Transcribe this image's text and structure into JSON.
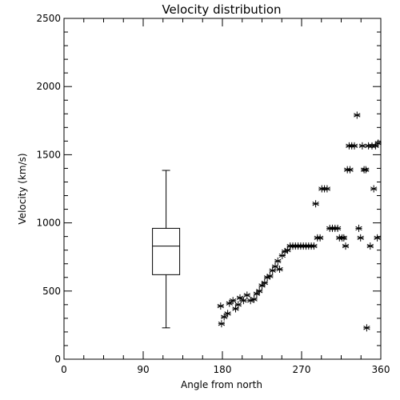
{
  "chart_data": {
    "type": "scatter",
    "title": "Velocity distribution",
    "xlabel": "Angle from north",
    "ylabel": "Velocity (km/s)",
    "xlim": [
      0,
      360
    ],
    "ylim": [
      0,
      2500
    ],
    "x_ticks": [
      0,
      90,
      180,
      270,
      360
    ],
    "y_ticks": [
      0,
      500,
      1000,
      1500,
      2000,
      2500
    ],
    "x_tick_labels": [
      "0",
      "90",
      "180",
      "270",
      "360"
    ],
    "y_tick_labels": [
      "0",
      "500",
      "1000",
      "1500",
      "2000",
      "2500"
    ],
    "grid": false,
    "marker": "asterisk",
    "boxplot": {
      "x": 116,
      "min": 230,
      "q1": 620,
      "median": 830,
      "q3": 960,
      "max": 1385
    },
    "points": [
      {
        "x": 178,
        "y": 390
      },
      {
        "x": 179,
        "y": 260
      },
      {
        "x": 182,
        "y": 310
      },
      {
        "x": 186,
        "y": 335
      },
      {
        "x": 188,
        "y": 410
      },
      {
        "x": 192,
        "y": 430
      },
      {
        "x": 195,
        "y": 370
      },
      {
        "x": 198,
        "y": 400
      },
      {
        "x": 200,
        "y": 450
      },
      {
        "x": 204,
        "y": 430
      },
      {
        "x": 208,
        "y": 470
      },
      {
        "x": 212,
        "y": 430
      },
      {
        "x": 216,
        "y": 440
      },
      {
        "x": 219,
        "y": 480
      },
      {
        "x": 222,
        "y": 500
      },
      {
        "x": 225,
        "y": 540
      },
      {
        "x": 228,
        "y": 560
      },
      {
        "x": 231,
        "y": 600
      },
      {
        "x": 234,
        "y": 610
      },
      {
        "x": 237,
        "y": 650
      },
      {
        "x": 240,
        "y": 680
      },
      {
        "x": 243,
        "y": 720
      },
      {
        "x": 245,
        "y": 660
      },
      {
        "x": 248,
        "y": 760
      },
      {
        "x": 251,
        "y": 790
      },
      {
        "x": 254,
        "y": 800
      },
      {
        "x": 257,
        "y": 830
      },
      {
        "x": 260,
        "y": 830
      },
      {
        "x": 263,
        "y": 830
      },
      {
        "x": 266,
        "y": 830
      },
      {
        "x": 269,
        "y": 830
      },
      {
        "x": 272,
        "y": 830
      },
      {
        "x": 275,
        "y": 830
      },
      {
        "x": 278,
        "y": 830
      },
      {
        "x": 281,
        "y": 830
      },
      {
        "x": 284,
        "y": 830
      },
      {
        "x": 286,
        "y": 1140
      },
      {
        "x": 288,
        "y": 890
      },
      {
        "x": 291,
        "y": 890
      },
      {
        "x": 293,
        "y": 1250
      },
      {
        "x": 296,
        "y": 1250
      },
      {
        "x": 299,
        "y": 1250
      },
      {
        "x": 302,
        "y": 960
      },
      {
        "x": 305,
        "y": 960
      },
      {
        "x": 308,
        "y": 960
      },
      {
        "x": 311,
        "y": 960
      },
      {
        "x": 313,
        "y": 890
      },
      {
        "x": 316,
        "y": 890
      },
      {
        "x": 318,
        "y": 890
      },
      {
        "x": 320,
        "y": 830
      },
      {
        "x": 322,
        "y": 1390
      },
      {
        "x": 325,
        "y": 1390
      },
      {
        "x": 324,
        "y": 1565
      },
      {
        "x": 327,
        "y": 1565
      },
      {
        "x": 330,
        "y": 1565
      },
      {
        "x": 333,
        "y": 1790
      },
      {
        "x": 335,
        "y": 960
      },
      {
        "x": 337,
        "y": 890
      },
      {
        "x": 339,
        "y": 1565
      },
      {
        "x": 341,
        "y": 1390
      },
      {
        "x": 343,
        "y": 1390
      },
      {
        "x": 344,
        "y": 230
      },
      {
        "x": 346,
        "y": 1565
      },
      {
        "x": 348,
        "y": 830
      },
      {
        "x": 350,
        "y": 1565
      },
      {
        "x": 352,
        "y": 1250
      },
      {
        "x": 354,
        "y": 1565
      },
      {
        "x": 356,
        "y": 890
      },
      {
        "x": 357,
        "y": 1585
      }
    ]
  }
}
